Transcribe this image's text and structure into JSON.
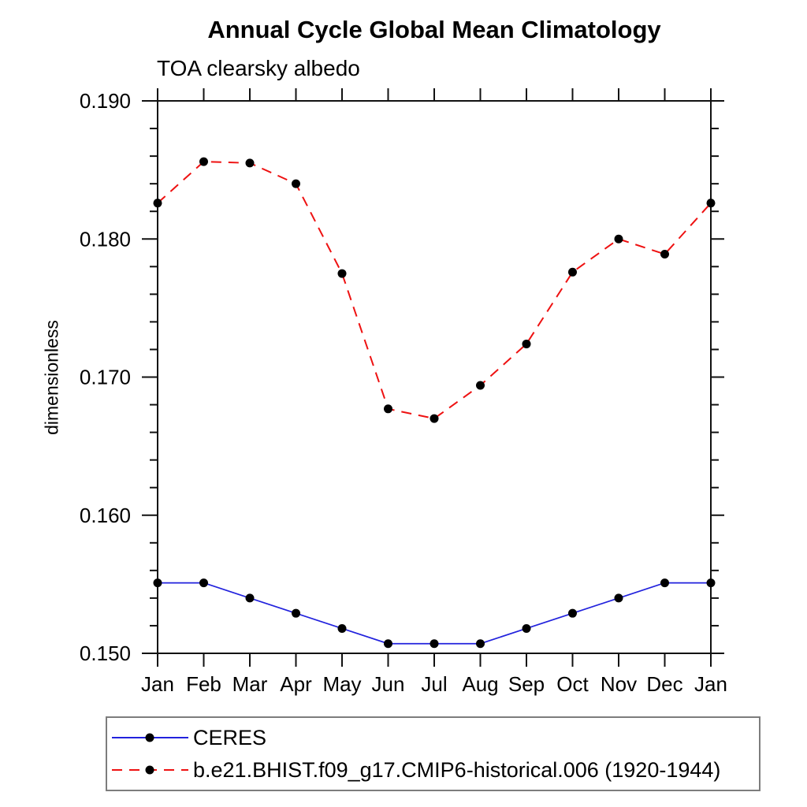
{
  "chart_data": {
    "type": "line",
    "title": "Annual Cycle Global Mean Climatology",
    "subtitle": "TOA clearsky albedo",
    "ylabel": "dimensionless",
    "xlabel": "",
    "x_tick_labels": [
      "Jan",
      "Feb",
      "Mar",
      "Apr",
      "May",
      "Jun",
      "Jul",
      "Aug",
      "Sep",
      "Oct",
      "Nov",
      "Dec",
      "Jan"
    ],
    "ylim": [
      0.15,
      0.19
    ],
    "y_major_ticks": [
      0.15,
      0.16,
      0.17,
      0.18,
      0.19
    ],
    "y_major_tick_labels": [
      "0.150",
      "0.160",
      "0.170",
      "0.180",
      "0.190"
    ],
    "y_minor_step": 0.002,
    "grid": false,
    "legend_position": "bottom-left",
    "marker": {
      "shape": "circle",
      "color": "#000000"
    },
    "axis_color": "#111111",
    "series": [
      {
        "name": "CERES",
        "color": "#2222dd",
        "line_style": "solid",
        "values": [
          0.1551,
          0.1551,
          0.154,
          0.1529,
          0.1518,
          0.1507,
          0.1507,
          0.1507,
          0.1518,
          0.1529,
          0.154,
          0.1551,
          0.1551
        ]
      },
      {
        "name": "b.e21.BHIST.f09_g17.CMIP6-historical.006 (1920-1944)",
        "color": "#ee1111",
        "line_style": "dashed",
        "values": [
          0.1826,
          0.1856,
          0.1855,
          0.184,
          0.1775,
          0.1677,
          0.167,
          0.1694,
          0.1724,
          0.1776,
          0.18,
          0.1789,
          0.1826
        ]
      }
    ]
  }
}
